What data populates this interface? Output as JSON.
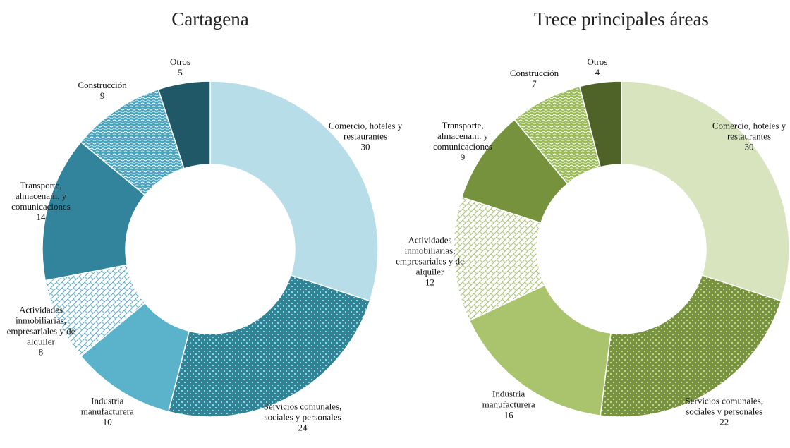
{
  "chart_data": [
    {
      "type": "donut",
      "title": "Cartagena",
      "categories": [
        "Comercio, hoteles y restaurantes",
        "Servicios comunales, sociales y personales",
        "Industria manufacturera",
        "Actividades inmobiliarias, empresariales y de alquiler",
        "Transporte, almacenam. y comunicaciones",
        "Construcción",
        "Otros"
      ],
      "values": [
        30,
        24,
        10,
        8,
        14,
        9,
        5
      ],
      "colors": [
        "#b7dde8",
        "#2e8598",
        "#5ab3cb",
        "#5ab3cb",
        "#31849b",
        "#4aa3bd",
        "#215868"
      ],
      "patterns": [
        "solid",
        "dots",
        "solid",
        "crosshatch",
        "solid",
        "waves",
        "solid"
      ]
    },
    {
      "type": "donut",
      "title": "Trece principales áreas",
      "categories": [
        "Comercio, hoteles y restaurantes",
        "Servicios comunales, sociales y personales",
        "Industria manufacturera",
        "Actividades inmobiliarias, empresariales y de alquiler",
        "Transporte, almacenam. y comunicaciones",
        "Construcción",
        "Otros"
      ],
      "values": [
        30,
        22,
        16,
        12,
        9,
        7,
        4
      ],
      "colors": [
        "#d7e4bd",
        "#77933c",
        "#a9c46c",
        "#a9c46c",
        "#76923c",
        "#9bbb59",
        "#4f6228"
      ],
      "patterns": [
        "solid",
        "dots",
        "solid",
        "crosshatch",
        "solid",
        "waves",
        "solid"
      ]
    }
  ]
}
